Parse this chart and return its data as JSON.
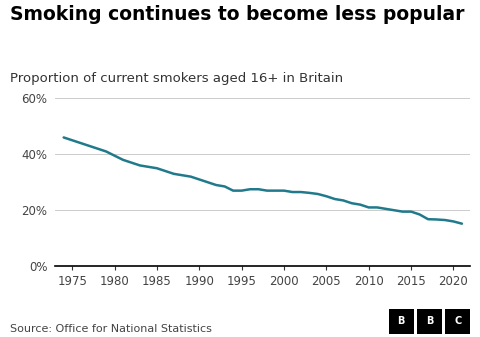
{
  "title": "Smoking continues to become less popular",
  "subtitle": "Proportion of current smokers aged 16+ in Britain",
  "source": "Source: Office for National Statistics",
  "line_color": "#217a8c",
  "line_width": 1.8,
  "background_color": "#ffffff",
  "years": [
    1974,
    1975,
    1976,
    1977,
    1978,
    1979,
    1980,
    1981,
    1982,
    1983,
    1984,
    1985,
    1986,
    1987,
    1988,
    1989,
    1990,
    1991,
    1992,
    1993,
    1994,
    1995,
    1996,
    1997,
    1998,
    1999,
    2000,
    2001,
    2002,
    2003,
    2004,
    2005,
    2006,
    2007,
    2008,
    2009,
    2010,
    2011,
    2012,
    2013,
    2014,
    2015,
    2016,
    2017,
    2018,
    2019,
    2020,
    2021
  ],
  "values": [
    0.46,
    0.45,
    0.44,
    0.43,
    0.42,
    0.41,
    0.395,
    0.38,
    0.37,
    0.36,
    0.355,
    0.35,
    0.34,
    0.33,
    0.325,
    0.32,
    0.31,
    0.3,
    0.29,
    0.285,
    0.27,
    0.27,
    0.275,
    0.275,
    0.27,
    0.27,
    0.27,
    0.265,
    0.265,
    0.262,
    0.258,
    0.25,
    0.24,
    0.235,
    0.225,
    0.22,
    0.21,
    0.21,
    0.205,
    0.2,
    0.195,
    0.195,
    0.185,
    0.168,
    0.167,
    0.165,
    0.16,
    0.152
  ],
  "yticks": [
    0.0,
    0.2,
    0.4,
    0.6
  ],
  "ytick_labels": [
    "0%",
    "20%",
    "40%",
    "60%"
  ],
  "xticks": [
    1975,
    1980,
    1985,
    1990,
    1995,
    2000,
    2005,
    2010,
    2015,
    2020
  ],
  "ylim": [
    0.0,
    0.65
  ],
  "xlim": [
    1973,
    2022
  ],
  "grid_color": "#cccccc",
  "tick_color": "#444444",
  "title_fontsize": 13.5,
  "subtitle_fontsize": 9.5,
  "source_fontsize": 8,
  "axis_fontsize": 8.5
}
